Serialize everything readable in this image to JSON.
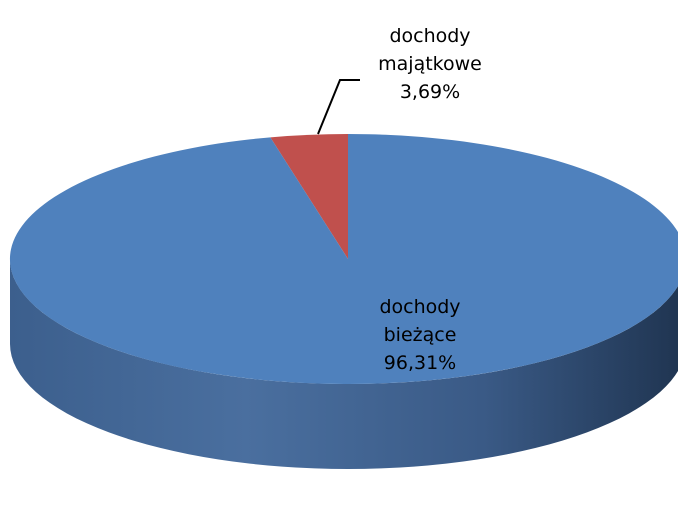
{
  "chart_data": {
    "type": "pie",
    "title": "",
    "slices": [
      {
        "label_lines": [
          "dochody",
          "majątkowe"
        ],
        "value": 3.69,
        "value_label": "3,69%",
        "color": "#C0504D"
      },
      {
        "label_lines": [
          "dochody",
          "bieżące"
        ],
        "value": 96.31,
        "value_label": "96,31%",
        "color": "#4F81BD"
      }
    ],
    "legend": false,
    "three_d": true
  }
}
